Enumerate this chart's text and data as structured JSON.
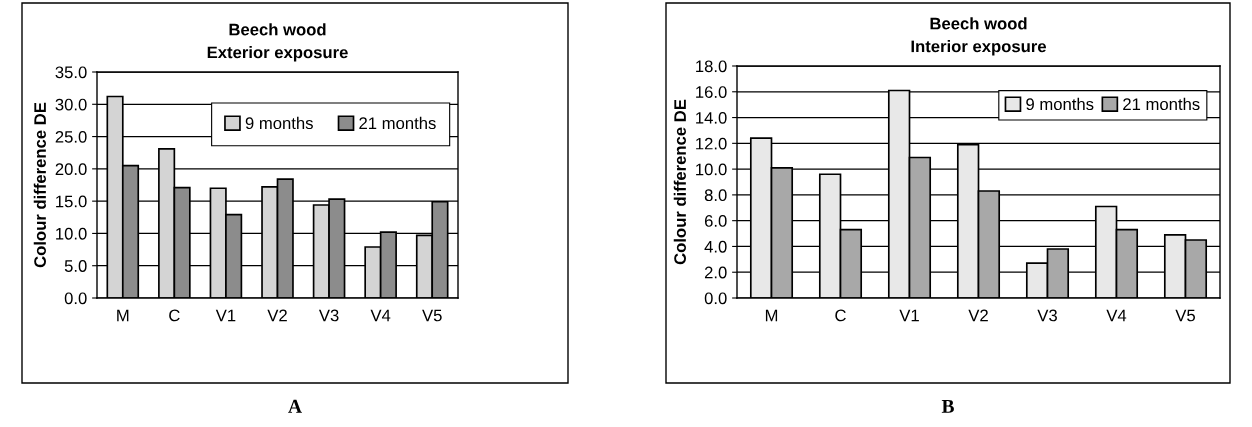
{
  "chart_data": [
    {
      "type": "bar",
      "title": "Beech wood\nExterior exposure",
      "ylabel": "Colour difference DE",
      "categories": [
        "M",
        "C",
        "V1",
        "V2",
        "V3",
        "V4",
        "V5"
      ],
      "series": [
        {
          "name": "9 months",
          "color": "#d4d4d4",
          "values": [
            31.2,
            23.1,
            17.0,
            17.2,
            14.4,
            7.9,
            9.7
          ]
        },
        {
          "name": "21 months",
          "color": "#8c8c8c",
          "values": [
            20.5,
            17.1,
            12.9,
            18.4,
            15.3,
            10.2,
            14.9
          ]
        }
      ],
      "ylim": [
        0,
        35
      ],
      "yticks": [
        {
          "value": 0,
          "label": "0.0"
        },
        {
          "value": 5,
          "label": "5.0"
        },
        {
          "value": 10,
          "label": "10.0"
        },
        {
          "value": 15,
          "label": "15.0"
        },
        {
          "value": 20,
          "label": "20.0"
        },
        {
          "value": 25,
          "label": "25.0"
        },
        {
          "value": 30,
          "label": "30.0"
        },
        {
          "value": 35,
          "label": "35.0"
        }
      ],
      "grid": "y",
      "legend": "top right",
      "annotations": [
        "A"
      ]
    },
    {
      "type": "bar",
      "title": "Beech wood\nInterior exposure",
      "ylabel": "Colour difference DE",
      "categories": [
        "M",
        "C",
        "V1",
        "V2",
        "V3",
        "V4",
        "V5"
      ],
      "series": [
        {
          "name": "9 months",
          "color": "#e8e8e8",
          "values": [
            12.4,
            9.6,
            16.1,
            11.9,
            2.7,
            7.1,
            4.9
          ]
        },
        {
          "name": "21 months",
          "color": "#a8a8a8",
          "values": [
            10.1,
            5.3,
            10.9,
            8.3,
            3.8,
            5.3,
            4.5
          ]
        }
      ],
      "ylim": [
        0,
        18
      ],
      "yticks": [
        {
          "value": 0,
          "label": "0.0"
        },
        {
          "value": 2,
          "label": "2.0"
        },
        {
          "value": 4,
          "label": "4.0"
        },
        {
          "value": 6,
          "label": "6.0"
        },
        {
          "value": 8,
          "label": "8.0"
        },
        {
          "value": 10,
          "label": "10.0"
        },
        {
          "value": 12,
          "label": "12.0"
        },
        {
          "value": 14,
          "label": "14.0"
        },
        {
          "value": 16,
          "label": "16.0"
        },
        {
          "value": 18,
          "label": "18.0"
        }
      ],
      "grid": "y",
      "legend": "top right",
      "annotations": [
        "B"
      ]
    }
  ]
}
